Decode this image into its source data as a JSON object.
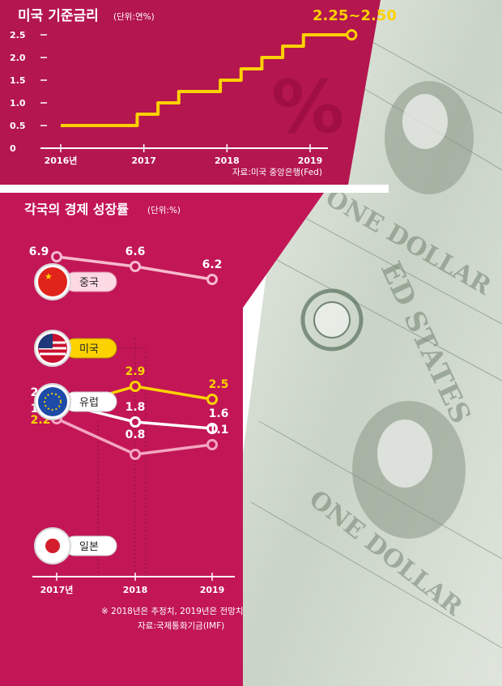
{
  "colors": {
    "panel_top": "#b4164f",
    "panel_bottom": "#c21657",
    "accent_yellow": "#fcd200",
    "line_white": "#ffffff",
    "line_pink": "#f3a6c0",
    "line_light_pink": "#f6b9cd"
  },
  "icons": {
    "percent": "percent-icon",
    "china": "china-flag-icon",
    "usa": "usa-flag-icon",
    "eu": "eu-flag-icon",
    "japan": "japan-flag-icon",
    "money": "dollar-bills-photo"
  },
  "top_chart": {
    "title": "미국 기준금리",
    "unit": "(단위:연%)",
    "highlight_label": "2.25~2.50",
    "y_ticks": [
      "0",
      "0.5",
      "1.0",
      "1.5",
      "2.0",
      "2.5"
    ],
    "x_ticks": [
      "2016년",
      "2017",
      "2018",
      "2019"
    ],
    "source": "자료:미국 중앙은행(Fed)"
  },
  "bottom_chart": {
    "title": "각국의 경제 성장률",
    "unit": "(단위:%)",
    "x_ticks": [
      "2017년",
      "2018",
      "2019"
    ],
    "note": "※ 2018년은 추정치, 2019년은 전망치",
    "source": "자료:국제통화기금(IMF)",
    "countries": {
      "china": "중국",
      "usa": "미국",
      "eu": "유럽",
      "japan": "일본"
    }
  },
  "chart_data": [
    {
      "type": "line",
      "title": "미국 기준금리",
      "unit": "연%",
      "step": true,
      "ylim": [
        0,
        2.5
      ],
      "x": [
        2016.0,
        2016.92,
        2017.17,
        2017.42,
        2017.92,
        2018.17,
        2018.42,
        2018.67,
        2018.92,
        2019.5
      ],
      "values": [
        0.5,
        0.75,
        1.0,
        1.25,
        1.5,
        1.75,
        2.0,
        2.25,
        2.5,
        2.5
      ],
      "annotation": "2.25~2.50"
    },
    {
      "type": "line",
      "title": "각국의 경제 성장률",
      "unit": "%",
      "categories": [
        "2017년",
        "2018",
        "2019"
      ],
      "ylim": [
        0,
        7
      ],
      "series": [
        {
          "name": "중국",
          "values": [
            6.9,
            6.6,
            6.2
          ]
        },
        {
          "name": "미국",
          "values": [
            2.2,
            2.9,
            2.5
          ]
        },
        {
          "name": "유럽",
          "values": [
            2.4,
            1.8,
            1.6
          ]
        },
        {
          "name": "일본",
          "values": [
            1.9,
            0.8,
            1.1
          ]
        }
      ]
    }
  ]
}
